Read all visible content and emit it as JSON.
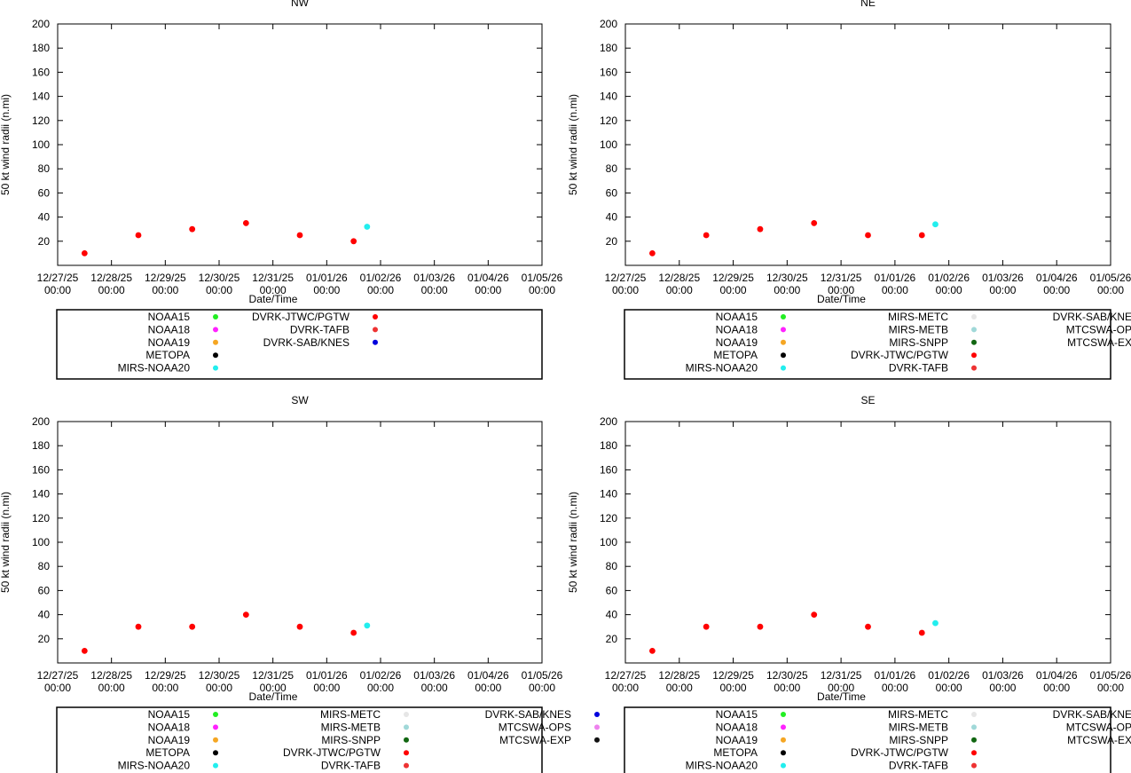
{
  "chart_data": [
    {
      "type": "scatter",
      "title": "NW",
      "xlabel": "Date/Time",
      "ylabel": "50 kt wind radii (n.mi)",
      "ylim": [
        0,
        200
      ],
      "yticks": [
        20,
        40,
        60,
        80,
        100,
        120,
        140,
        160,
        180,
        200
      ],
      "xlim_days": [
        0,
        9
      ],
      "xticks": [
        {
          "date": "12/27/25",
          "time": "00:00"
        },
        {
          "date": "12/28/25",
          "time": "00:00"
        },
        {
          "date": "12/29/25",
          "time": "00:00"
        },
        {
          "date": "12/30/25",
          "time": "00:00"
        },
        {
          "date": "12/31/25",
          "time": "00:00"
        },
        {
          "date": "01/01/26",
          "time": "00:00"
        },
        {
          "date": "01/02/26",
          "time": "00:00"
        },
        {
          "date": "01/03/26",
          "time": "00:00"
        },
        {
          "date": "01/04/26",
          "time": "00:00"
        },
        {
          "date": "01/05/26",
          "time": "00:00"
        }
      ],
      "legend_columns": [
        [
          {
            "name": "NOAA15",
            "color": "#22ee22"
          },
          {
            "name": "NOAA18",
            "color": "#ff22ff"
          },
          {
            "name": "NOAA19",
            "color": "#f5a623"
          },
          {
            "name": "METOPA",
            "color": "#000000"
          },
          {
            "name": "MIRS-NOAA20",
            "color": "#22eeee"
          }
        ],
        [
          {
            "name": "DVRK-JTWC/PGTW",
            "color": "#ff0000"
          },
          {
            "name": "DVRK-TAFB",
            "color": "#ee3333"
          },
          {
            "name": "DVRK-SAB/KNES",
            "color": "#0000dd"
          }
        ]
      ],
      "series": [
        {
          "name": "DVRK-JTWC/PGTW",
          "color": "#ff0000",
          "x": [
            0.5,
            1.5,
            2.5,
            3.5,
            4.5,
            5.5
          ],
          "y": [
            10,
            25,
            30,
            35,
            25,
            20
          ]
        },
        {
          "name": "MIRS-NOAA20",
          "color": "#22eeee",
          "x": [
            5.75
          ],
          "y": [
            32
          ]
        }
      ]
    },
    {
      "type": "scatter",
      "title": "NE",
      "xlabel": "Date/Time",
      "ylabel": "50 kt wind radii (n.mi)",
      "ylim": [
        0,
        200
      ],
      "yticks": [
        20,
        40,
        60,
        80,
        100,
        120,
        140,
        160,
        180,
        200
      ],
      "xlim_days": [
        0,
        9
      ],
      "xticks": [
        {
          "date": "12/27/25",
          "time": "00:00"
        },
        {
          "date": "12/28/25",
          "time": "00:00"
        },
        {
          "date": "12/29/25",
          "time": "00:00"
        },
        {
          "date": "12/30/25",
          "time": "00:00"
        },
        {
          "date": "12/31/25",
          "time": "00:00"
        },
        {
          "date": "01/01/26",
          "time": "00:00"
        },
        {
          "date": "01/02/26",
          "time": "00:00"
        },
        {
          "date": "01/03/26",
          "time": "00:00"
        },
        {
          "date": "01/04/26",
          "time": "00:00"
        },
        {
          "date": "01/05/26",
          "time": "00:00"
        }
      ],
      "legend_columns": [
        [
          {
            "name": "NOAA15",
            "color": "#22ee22"
          },
          {
            "name": "NOAA18",
            "color": "#ff22ff"
          },
          {
            "name": "NOAA19",
            "color": "#f5a623"
          },
          {
            "name": "METOPA",
            "color": "#000000"
          },
          {
            "name": "MIRS-NOAA20",
            "color": "#22eeee"
          }
        ],
        [
          {
            "name": "MIRS-METC",
            "color": "#e6e6e6"
          },
          {
            "name": "MIRS-METB",
            "color": "#a0d8d8"
          },
          {
            "name": "MIRS-SNPP",
            "color": "#116611"
          },
          {
            "name": "DVRK-JTWC/PGTW",
            "color": "#ff0000"
          },
          {
            "name": "DVRK-TAFB",
            "color": "#ee3333"
          }
        ],
        [
          {
            "name": "DVRK-SAB/KNES",
            "color": "#0000dd"
          },
          {
            "name": "MTCSWA-OPS",
            "color": "#ee82ee"
          },
          {
            "name": "MTCSWA-EXP",
            "color": "#111111"
          }
        ]
      ],
      "series": [
        {
          "name": "DVRK-JTWC/PGTW",
          "color": "#ff0000",
          "x": [
            0.5,
            1.5,
            2.5,
            3.5,
            4.5,
            5.5
          ],
          "y": [
            10,
            25,
            30,
            35,
            25,
            25
          ]
        },
        {
          "name": "MIRS-NOAA20",
          "color": "#22eeee",
          "x": [
            5.75
          ],
          "y": [
            34
          ]
        }
      ]
    },
    {
      "type": "scatter",
      "title": "SW",
      "xlabel": "Date/Time",
      "ylabel": "50 kt wind radii (n.mi)",
      "ylim": [
        0,
        200
      ],
      "yticks": [
        20,
        40,
        60,
        80,
        100,
        120,
        140,
        160,
        180,
        200
      ],
      "xlim_days": [
        0,
        9
      ],
      "xticks": [
        {
          "date": "12/27/25",
          "time": "00:00"
        },
        {
          "date": "12/28/25",
          "time": "00:00"
        },
        {
          "date": "12/29/25",
          "time": "00:00"
        },
        {
          "date": "12/30/25",
          "time": "00:00"
        },
        {
          "date": "12/31/25",
          "time": "00:00"
        },
        {
          "date": "01/01/26",
          "time": "00:00"
        },
        {
          "date": "01/02/26",
          "time": "00:00"
        },
        {
          "date": "01/03/26",
          "time": "00:00"
        },
        {
          "date": "01/04/26",
          "time": "00:00"
        },
        {
          "date": "01/05/26",
          "time": "00:00"
        }
      ],
      "legend_columns": [
        [
          {
            "name": "NOAA15",
            "color": "#22ee22"
          },
          {
            "name": "NOAA18",
            "color": "#ff22ff"
          },
          {
            "name": "NOAA19",
            "color": "#f5a623"
          },
          {
            "name": "METOPA",
            "color": "#000000"
          },
          {
            "name": "MIRS-NOAA20",
            "color": "#22eeee"
          }
        ],
        [
          {
            "name": "MIRS-METC",
            "color": "#e6e6e6"
          },
          {
            "name": "MIRS-METB",
            "color": "#a0d8d8"
          },
          {
            "name": "MIRS-SNPP",
            "color": "#116611"
          },
          {
            "name": "DVRK-JTWC/PGTW",
            "color": "#ff0000"
          },
          {
            "name": "DVRK-TAFB",
            "color": "#ee3333"
          }
        ],
        [
          {
            "name": "DVRK-SAB/KNES",
            "color": "#0000dd"
          },
          {
            "name": "MTCSWA-OPS",
            "color": "#ee82ee"
          },
          {
            "name": "MTCSWA-EXP",
            "color": "#111111"
          }
        ]
      ],
      "series": [
        {
          "name": "DVRK-JTWC/PGTW",
          "color": "#ff0000",
          "x": [
            0.5,
            1.5,
            2.5,
            3.5,
            4.5,
            5.5
          ],
          "y": [
            10,
            30,
            30,
            40,
            30,
            25
          ]
        },
        {
          "name": "MIRS-NOAA20",
          "color": "#22eeee",
          "x": [
            5.75
          ],
          "y": [
            31
          ]
        }
      ]
    },
    {
      "type": "scatter",
      "title": "SE",
      "xlabel": "Date/Time",
      "ylabel": "50 kt wind radii (n.mi)",
      "ylim": [
        0,
        200
      ],
      "yticks": [
        20,
        40,
        60,
        80,
        100,
        120,
        140,
        160,
        180,
        200
      ],
      "xlim_days": [
        0,
        9
      ],
      "xticks": [
        {
          "date": "12/27/25",
          "time": "00:00"
        },
        {
          "date": "12/28/25",
          "time": "00:00"
        },
        {
          "date": "12/29/25",
          "time": "00:00"
        },
        {
          "date": "12/30/25",
          "time": "00:00"
        },
        {
          "date": "12/31/25",
          "time": "00:00"
        },
        {
          "date": "01/01/26",
          "time": "00:00"
        },
        {
          "date": "01/02/26",
          "time": "00:00"
        },
        {
          "date": "01/03/26",
          "time": "00:00"
        },
        {
          "date": "01/04/26",
          "time": "00:00"
        },
        {
          "date": "01/05/26",
          "time": "00:00"
        }
      ],
      "legend_columns": [
        [
          {
            "name": "NOAA15",
            "color": "#22ee22"
          },
          {
            "name": "NOAA18",
            "color": "#ff22ff"
          },
          {
            "name": "NOAA19",
            "color": "#f5a623"
          },
          {
            "name": "METOPA",
            "color": "#000000"
          },
          {
            "name": "MIRS-NOAA20",
            "color": "#22eeee"
          }
        ],
        [
          {
            "name": "MIRS-METC",
            "color": "#e6e6e6"
          },
          {
            "name": "MIRS-METB",
            "color": "#a0d8d8"
          },
          {
            "name": "MIRS-SNPP",
            "color": "#116611"
          },
          {
            "name": "DVRK-JTWC/PGTW",
            "color": "#ff0000"
          },
          {
            "name": "DVRK-TAFB",
            "color": "#ee3333"
          }
        ],
        [
          {
            "name": "DVRK-SAB/KNES",
            "color": "#0000dd"
          },
          {
            "name": "MTCSWA-OPS",
            "color": "#ee82ee"
          },
          {
            "name": "MTCSWA-EXP",
            "color": "#111111"
          }
        ]
      ],
      "series": [
        {
          "name": "DVRK-JTWC/PGTW",
          "color": "#ff0000",
          "x": [
            0.5,
            1.5,
            2.5,
            3.5,
            4.5,
            5.5
          ],
          "y": [
            10,
            30,
            30,
            40,
            30,
            25
          ]
        },
        {
          "name": "MIRS-NOAA20",
          "color": "#22eeee",
          "x": [
            5.75
          ],
          "y": [
            33
          ]
        }
      ]
    }
  ]
}
